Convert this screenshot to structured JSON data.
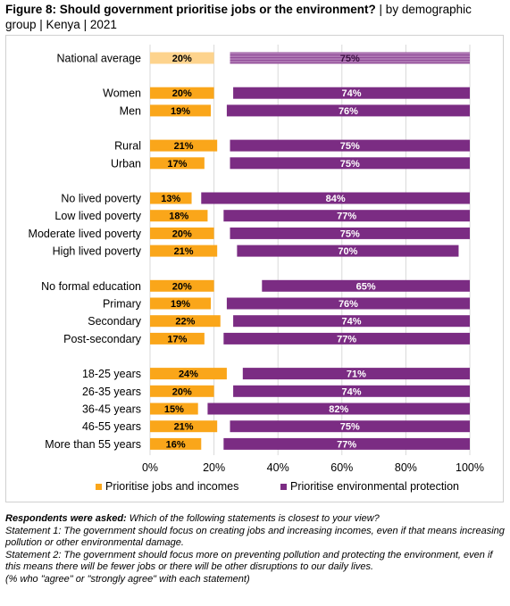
{
  "title": {
    "bold": "Figure 8: Should government prioritise jobs or the environment?",
    "rest": " | by demographic group | Kenya | 2021"
  },
  "colors": {
    "jobs": "#FAA61A",
    "jobs_light": "#FDD38D",
    "env": "#7B2C83",
    "env_light": "#B07BB5",
    "grid": "#d9d9d9"
  },
  "legend": {
    "jobs": "Prioritise jobs and incomes",
    "env": "Prioritise environmental protection"
  },
  "notes": {
    "asked_label": "Respondents were asked:",
    "asked_text": " Which of the following statements is closest to your view?",
    "statement1": "Statement 1: The government should focus on creating jobs and increasing incomes, even if that means increasing pollution or other environmental damage.",
    "statement2": "Statement 2: The government should focus more on preventing pollution and protecting the environment, even if this means there will be fewer jobs or there will be other disruptions to our daily lives.",
    "footnote": "(% who \"agree\" or \"strongly agree\" with each statement)"
  },
  "chart_data": {
    "type": "bar",
    "orientation": "horizontal",
    "xlim": [
      0,
      100
    ],
    "xticks": [
      "0%",
      "20%",
      "40%",
      "60%",
      "80%",
      "100%"
    ],
    "grid": true,
    "legend_position": "bottom",
    "categories": [
      "National average",
      "Women",
      "Men",
      "Rural",
      "Urban",
      "No lived poverty",
      "Low lived poverty",
      "Moderate lived poverty",
      "High lived poverty",
      "No formal education",
      "Primary",
      "Secondary",
      "Post-secondary",
      "18-25 years",
      "26-35 years",
      "36-45 years",
      "46-55 years",
      "More than 55 years"
    ],
    "groups": [
      1,
      2,
      2,
      2,
      2,
      2,
      2,
      2,
      2,
      2,
      2,
      2,
      2,
      2,
      2,
      2,
      2,
      2
    ],
    "series": [
      {
        "name": "Prioritise jobs and incomes",
        "values": [
          20,
          20,
          19,
          21,
          17,
          13,
          18,
          20,
          21,
          20,
          19,
          22,
          17,
          24,
          20,
          15,
          21,
          16
        ],
        "labels": [
          "20%",
          "20%",
          "19%",
          "21%",
          "17%",
          "13%",
          "18%",
          "20%",
          "21%",
          "20%",
          "19%",
          "22%",
          "17%",
          "24%",
          "20%",
          "15%",
          "21%",
          "16%"
        ]
      },
      {
        "name": "Prioritise environmental protection",
        "values": [
          75,
          74,
          76,
          75,
          75,
          84,
          77,
          75,
          70,
          65,
          76,
          74,
          77,
          71,
          74,
          82,
          75,
          77
        ],
        "labels": [
          "75%",
          "74%",
          "76%",
          "75%",
          "75%",
          "84%",
          "77%",
          "75%",
          "70%",
          "65%",
          "76%",
          "74%",
          "77%",
          "71%",
          "74%",
          "82%",
          "75%",
          "77%"
        ]
      }
    ]
  }
}
